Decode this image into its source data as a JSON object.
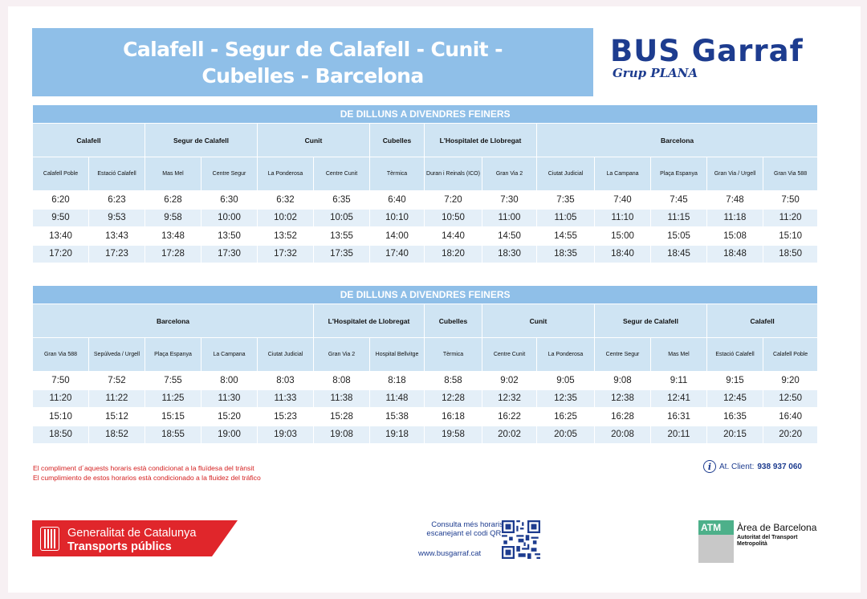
{
  "title_line1": "Calafell - Segur de Calafell - Cunit -",
  "title_line2": "Cubelles - Barcelona",
  "logo": {
    "brand": "BUS Garraf",
    "sub": "Grup PLANA"
  },
  "outbound": {
    "section": "DE DILLUNS A DIVENDRES FEINERS",
    "groups": [
      "Calafell",
      "Segur de Calafell",
      "Cunit",
      "Cubelles",
      "L'Hospitalet de Llobregat",
      "Barcelona"
    ],
    "stops": [
      "Calafell Poble",
      "Estació Calafell",
      "Mas Mel",
      "Centre Segur",
      "La Ponderosa",
      "Centre Cunit",
      "Tèrmica",
      "Duran i Reinals (ICO)",
      "Gran Via 2",
      "Ciutat Judicial",
      "La Campana",
      "Plaça Espanya",
      "Gran Via / Urgell",
      "Gran Via 588"
    ],
    "rows": [
      [
        "6:20",
        "6:23",
        "6:28",
        "6:30",
        "6:32",
        "6:35",
        "6:40",
        "7:20",
        "7:30",
        "7:35",
        "7:40",
        "7:45",
        "7:48",
        "7:50"
      ],
      [
        "9:50",
        "9:53",
        "9:58",
        "10:00",
        "10:02",
        "10:05",
        "10:10",
        "10:50",
        "11:00",
        "11:05",
        "11:10",
        "11:15",
        "11:18",
        "11:20"
      ],
      [
        "13:40",
        "13:43",
        "13:48",
        "13:50",
        "13:52",
        "13:55",
        "14:00",
        "14:40",
        "14:50",
        "14:55",
        "15:00",
        "15:05",
        "15:08",
        "15:10"
      ],
      [
        "17:20",
        "17:23",
        "17:28",
        "17:30",
        "17:32",
        "17:35",
        "17:40",
        "18:20",
        "18:30",
        "18:35",
        "18:40",
        "18:45",
        "18:48",
        "18:50"
      ]
    ]
  },
  "inbound": {
    "section": "DE DILLUNS A DIVENDRES FEINERS",
    "groups": [
      "Barcelona",
      "L'Hospitalet de Llobregat",
      "Cubelles",
      "Cunit",
      "Segur de Calafell",
      "Calafell"
    ],
    "stops": [
      "Gran Via 588",
      "Sepúlveda / Urgell",
      "Plaça Espanya",
      "La Campana",
      "Ciutat Judicial",
      "Gran Via 2",
      "Hospital Bellvitge",
      "Tèrmica",
      "Centre Cunit",
      "La Ponderosa",
      "Centre Segur",
      "Mas Mel",
      "Estació Calafell",
      "Calafell Poble"
    ],
    "rows": [
      [
        "7:50",
        "7:52",
        "7:55",
        "8:00",
        "8:03",
        "8:08",
        "8:18",
        "8:58",
        "9:02",
        "9:05",
        "9:08",
        "9:11",
        "9:15",
        "9:20"
      ],
      [
        "11:20",
        "11:22",
        "11:25",
        "11:30",
        "11:33",
        "11:38",
        "11:48",
        "12:28",
        "12:32",
        "12:35",
        "12:38",
        "12:41",
        "12:45",
        "12:50"
      ],
      [
        "15:10",
        "15:12",
        "15:15",
        "15:20",
        "15:23",
        "15:28",
        "15:38",
        "16:18",
        "16:22",
        "16:25",
        "16:28",
        "16:31",
        "16:35",
        "16:40"
      ],
      [
        "18:50",
        "18:52",
        "18:55",
        "19:00",
        "19:03",
        "19:08",
        "19:18",
        "19:58",
        "20:02",
        "20:05",
        "20:08",
        "20:11",
        "20:15",
        "20:20"
      ]
    ]
  },
  "notes": {
    "ca": "El compliment d´aquests horaris està condicionat a la fluïdesa del trànsit",
    "es": "El cumplimiento de estos horarios està condicionado a la fluidez del tráfico"
  },
  "client": {
    "label": "At. Client:",
    "phone": "938 937 060"
  },
  "generalitat": {
    "name": "Generalitat de Catalunya",
    "sub": "Transports públics"
  },
  "qr": {
    "line1": "Consulta més horaris",
    "line2": "escanejant el codi QR:",
    "url": "www.busgarraf.cat"
  },
  "atm": {
    "badge": "ATM",
    "name": "Àrea de Barcelona",
    "sub1": "Autoritat del Transport",
    "sub2": "Metropolità"
  },
  "colors": {
    "header_blue": "#8fbfe8",
    "light_blue": "#cfe4f3",
    "row_alt": "#e4eff8",
    "brand_navy": "#1d3c8f",
    "note_red": "#d42020",
    "gen_red": "#e0262b",
    "atm_green": "#4db08a"
  }
}
